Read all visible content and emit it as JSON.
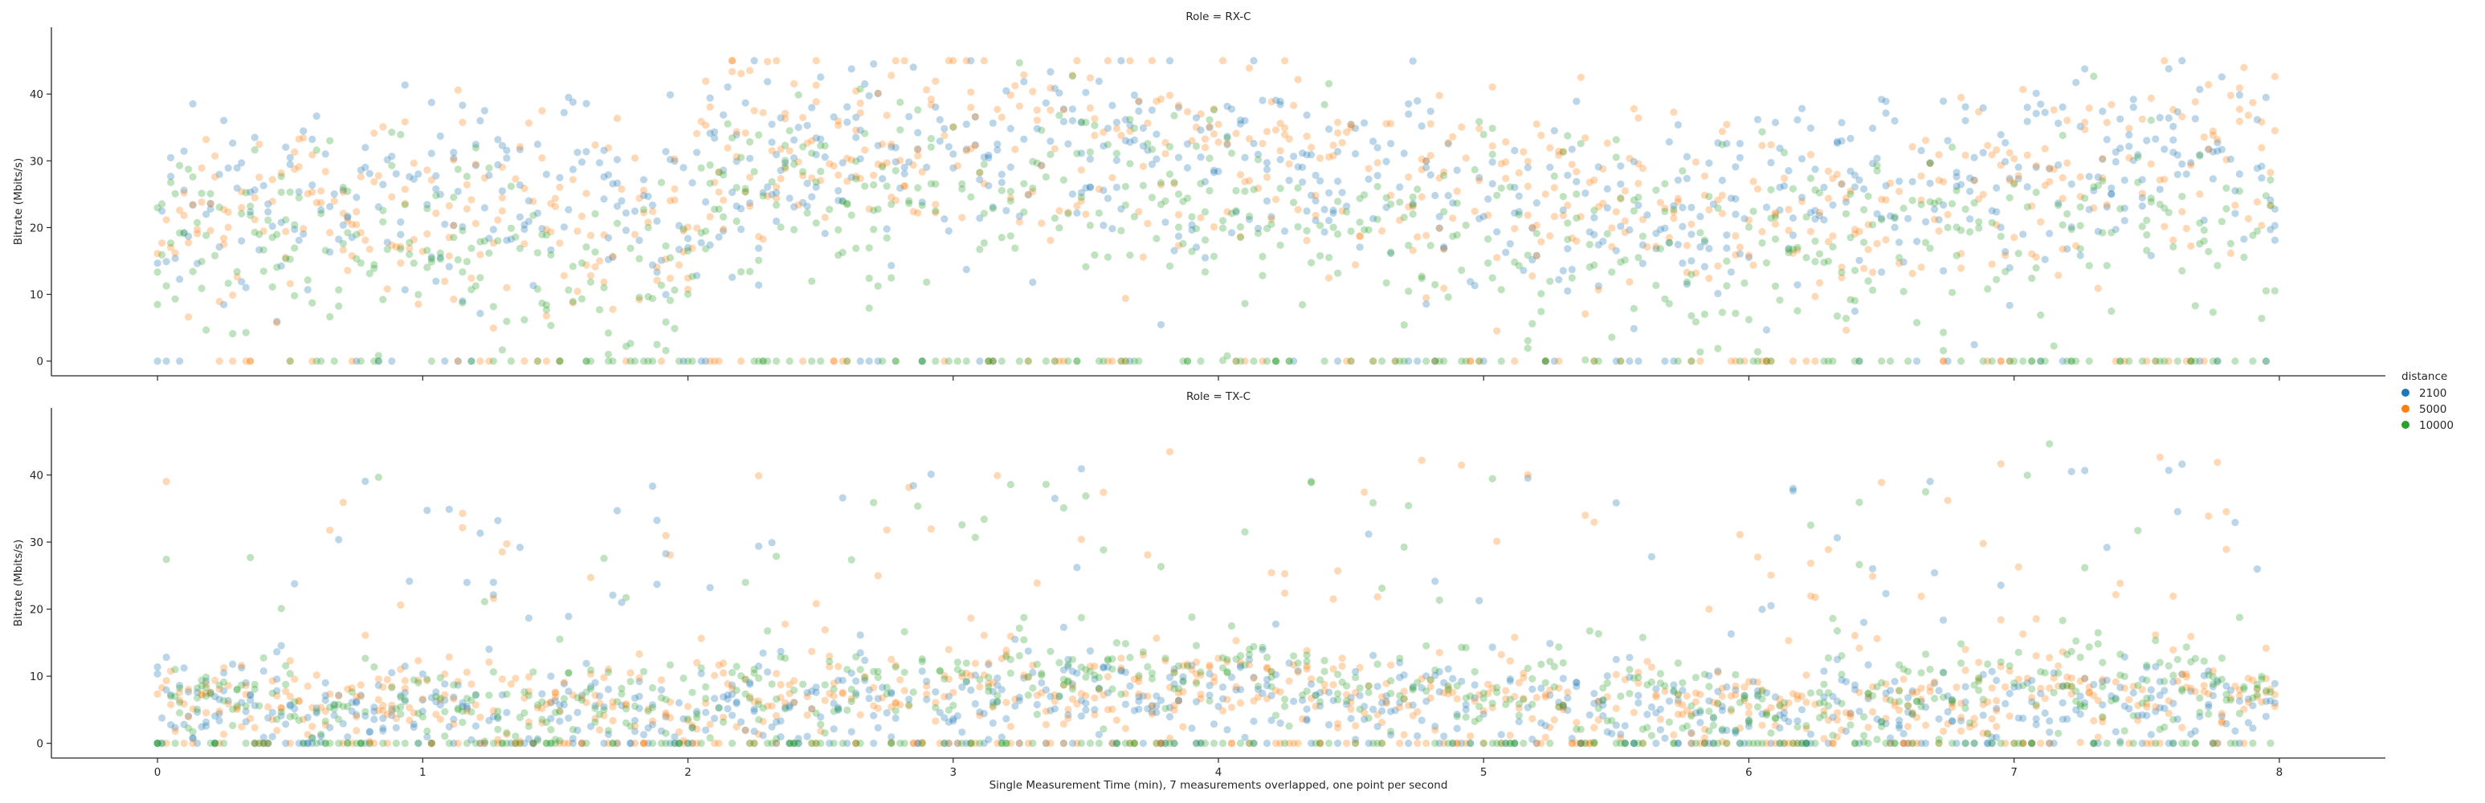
{
  "chart_data": {
    "type": "scatter",
    "xlabel": "Single Measurement Time (min), 7 measurements overlapped, one point per second",
    "ylabel": "Bitrate (Mbits/s)",
    "xlim": [
      -0.4,
      8.4
    ],
    "xticks": [
      0,
      1,
      2,
      3,
      4,
      5,
      6,
      7,
      8
    ],
    "yticks": [
      0,
      10,
      20,
      30,
      40
    ],
    "grid": false,
    "legend": {
      "title": "distance",
      "placement": "right",
      "entries": [
        "2100",
        "5000",
        "10000"
      ]
    },
    "series_colors": {
      "2100": "#1f77b4",
      "5000": "#ff7f0e",
      "10000": "#2ca02c"
    },
    "point_alpha": 0.3,
    "panels": [
      {
        "title": "Role = RX-C",
        "ylim": [
          -2.2,
          50
        ],
        "approx_profile": {
          "description_points_x_min": [
            0,
            0.5,
            1,
            1.5,
            2,
            2.1,
            3,
            4,
            5,
            5.5,
            6,
            6.5,
            7,
            7.5,
            8
          ],
          "median_mbits": {
            "2100": [
              22,
              24,
              24,
              26,
              20,
              30,
              30,
              30,
              24,
              22,
              23,
              25,
              28,
              30,
              30
            ],
            "5000": [
              20,
              22,
              22,
              22,
              18,
              32,
              33,
              32,
              25,
              24,
              22,
              24,
              27,
              30,
              31
            ],
            "10000": [
              18,
              18,
              16,
              14,
              10,
              26,
              26,
              24,
              20,
              18,
              16,
              18,
              22,
              22,
              20
            ]
          },
          "zero_rate_fraction": {
            "2100": 0.05,
            "5000": 0.1,
            "10000": 0.18
          }
        }
      },
      {
        "title": "Role = TX-C",
        "ylim": [
          -2.2,
          50
        ],
        "approx_profile": {
          "description_points_x_min": [
            0,
            0.5,
            1,
            1.5,
            2,
            3,
            4,
            5,
            5.5,
            6,
            6.5,
            7,
            7.5,
            8
          ],
          "median_mbits": {
            "2100": [
              6,
              5,
              5,
              5,
              5,
              7,
              7,
              6,
              5,
              4,
              5,
              7,
              7,
              6
            ],
            "5000": [
              7,
              6,
              7,
              6,
              6,
              8,
              9,
              7,
              6,
              5,
              6,
              8,
              9,
              8
            ],
            "10000": [
              6,
              5,
              6,
              5,
              6,
              10,
              11,
              7,
              7,
              5,
              7,
              10,
              10,
              9
            ]
          },
          "zero_rate_fraction": {
            "2100": 0.08,
            "5000": 0.12,
            "10000": 0.2
          }
        }
      }
    ]
  }
}
